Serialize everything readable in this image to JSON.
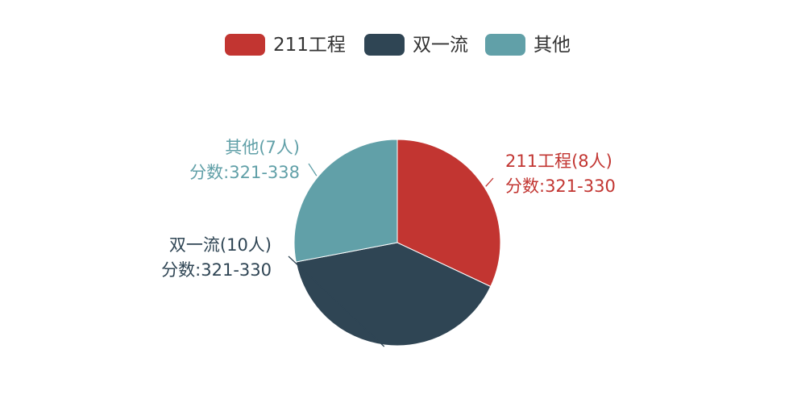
{
  "chart_data": {
    "type": "pie",
    "title": "",
    "legend": {
      "position": "top-center",
      "items": [
        "211工程",
        "双一流",
        "其他"
      ]
    },
    "slices": [
      {
        "name": "211工程",
        "value": 8,
        "color": "#c23531",
        "label_line1": "211工程(8人)",
        "label_line2": "分数:321-330"
      },
      {
        "name": "双一流",
        "value": 10,
        "color": "#2f4554",
        "label_line1": "双一流(10人)",
        "label_line2": "分数:321-330"
      },
      {
        "name": "其他",
        "value": 7,
        "color": "#61a0a8",
        "label_line1": "其他(7人)",
        "label_line2": "分数:321-338"
      }
    ],
    "start_angle_deg": 90,
    "direction": "clockwise"
  }
}
